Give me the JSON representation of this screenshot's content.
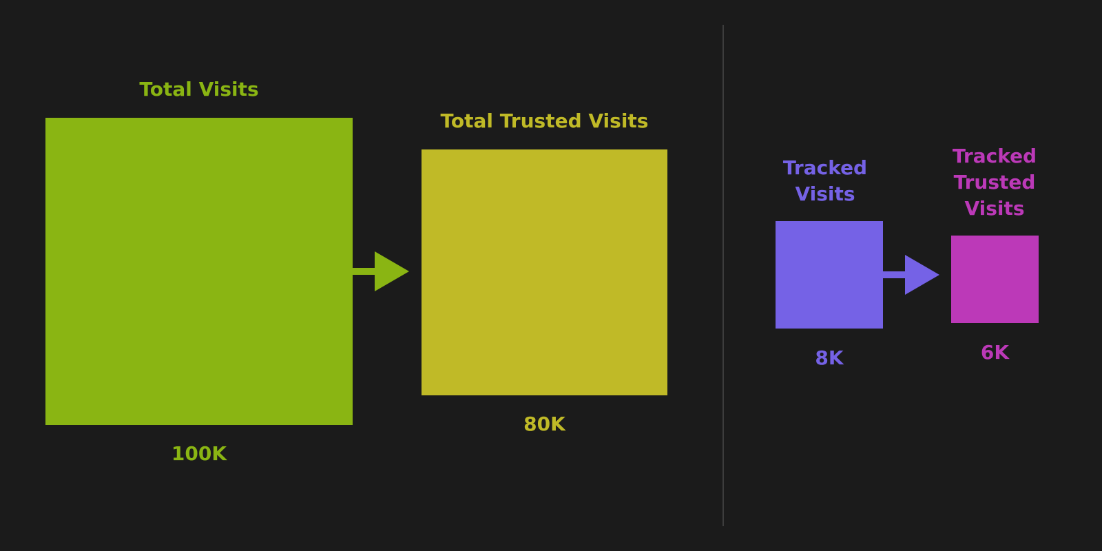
{
  "colors": {
    "background": "#1b1b1b",
    "total_visits": "#8ab513",
    "total_trusted_visits": "#c0ba27",
    "tracked_visits": "#7562e6",
    "tracked_trusted_visits": "#bc39b8",
    "divider": "#3d3d3d"
  },
  "left_panel": {
    "total_visits": {
      "title": "Total Visits",
      "value": "100K"
    },
    "total_trusted_visits": {
      "title": "Total Trusted Visits",
      "value": "80K"
    }
  },
  "right_panel": {
    "tracked_visits": {
      "title_line1": "Tracked",
      "title_line2": "Visits",
      "value": "8K"
    },
    "tracked_trusted_visits": {
      "title_line1": "Tracked",
      "title_line2": "Trusted",
      "title_line3": "Visits",
      "value": "6K"
    }
  },
  "icons": [
    "arrow-right-icon",
    "arrow-right-icon"
  ]
}
